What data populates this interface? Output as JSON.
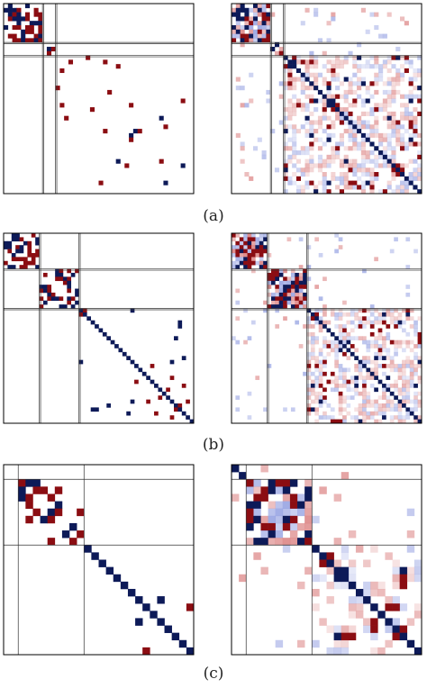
{
  "figure": {
    "colors": {
      "positive": "#8b0d12",
      "negative": "#0d1a58",
      "pos_light": "#d97a7a",
      "neg_light": "#8f9ce0",
      "frame": "#000000",
      "divider": "#333333"
    },
    "panels": [
      {
        "label": "(a)",
        "size": 44,
        "blocks": [
          9,
          3,
          32
        ],
        "left_density_block": 0.55,
        "left_density_bg": 0.02,
        "right_density_bg": 0.55
      },
      {
        "label": "(b)",
        "size": 48,
        "blocks": [
          9,
          10,
          29
        ],
        "left_density_block": 0.45,
        "left_density_bg": 0.035,
        "right_density_bg": 0.55
      },
      {
        "label": "(c)",
        "size": 26,
        "blocks": [
          2,
          9,
          15
        ],
        "left_density_block": 0.4,
        "left_density_bg": 0.03,
        "right_density_bg": 0.35
      }
    ]
  }
}
